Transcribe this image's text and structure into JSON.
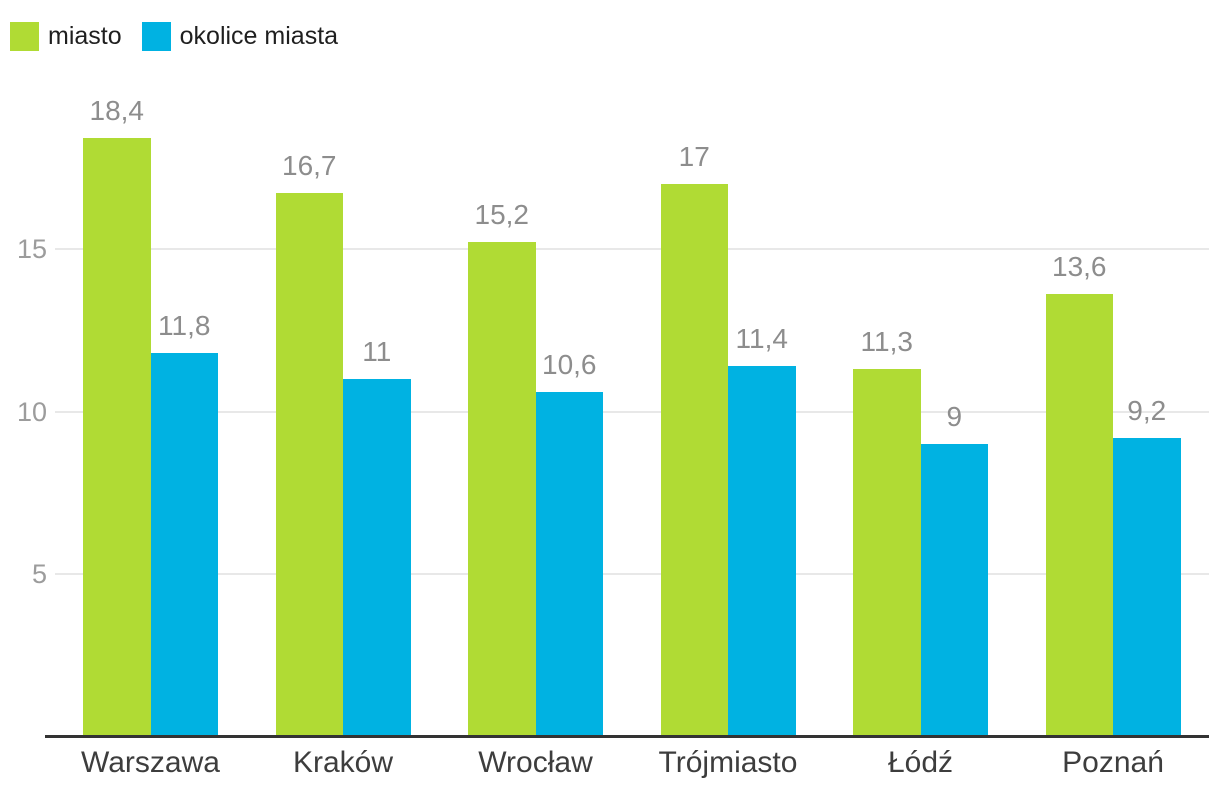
{
  "chart_data": {
    "type": "bar",
    "title": "",
    "xlabel": "",
    "ylabel": "",
    "categories": [
      "Warszawa",
      "Kraków",
      "Wrocław",
      "Trójmiasto",
      "Łódź",
      "Poznań"
    ],
    "series": [
      {
        "name": "miasto",
        "color": "#b0db34",
        "values": [
          18.4,
          16.7,
          15.2,
          17,
          11.3,
          13.6
        ],
        "labels": [
          "18,4",
          "16,7",
          "15,2",
          "17",
          "11,3",
          "13,6"
        ]
      },
      {
        "name": "okolice miasta",
        "color": "#00b2e2",
        "values": [
          11.8,
          11,
          10.6,
          11.4,
          9,
          9.2
        ],
        "labels": [
          "11,8",
          "11",
          "10,6",
          "11,4",
          "9",
          "9,2"
        ]
      }
    ],
    "yticks": [
      5,
      10,
      15
    ],
    "ytick_labels": [
      "5",
      "10",
      "15"
    ],
    "ylim": [
      0,
      20
    ],
    "grid": true,
    "legend_position": "top-left"
  },
  "colors": {
    "background": "#ffffff",
    "axis_line": "#333333",
    "gridline": "#e8e8e8",
    "value_label": "#8d8d8d",
    "tick_label": "#9c9c9c",
    "category_label": "#3d3d3d",
    "legend_text": "#1f1f1f"
  }
}
